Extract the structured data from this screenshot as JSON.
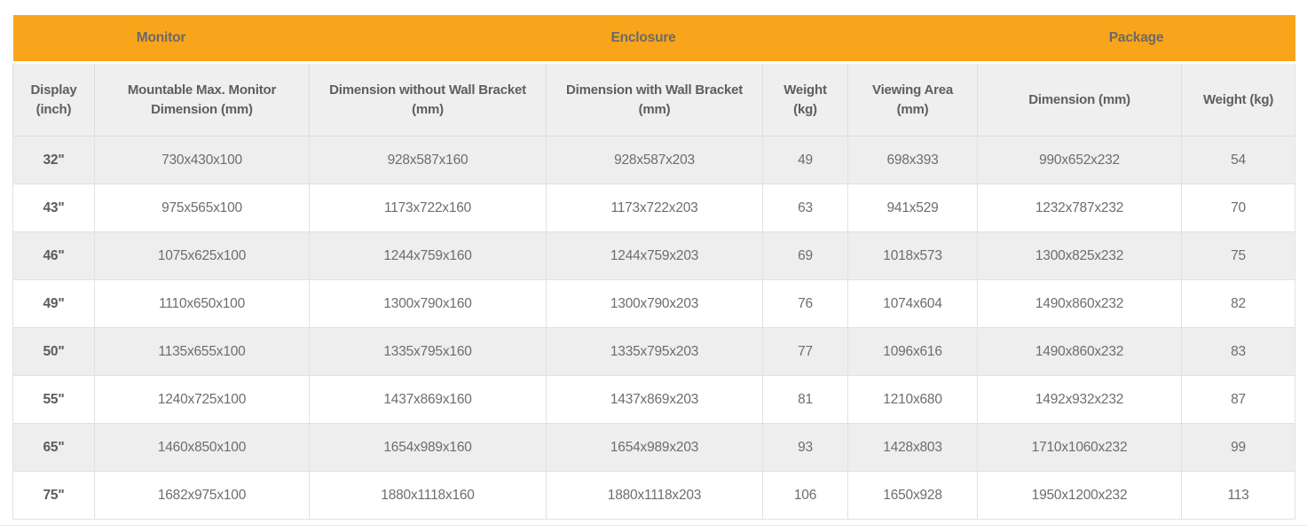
{
  "table": {
    "accent_color": "#F9A51B",
    "group_headers": [
      {
        "label": "Monitor",
        "colspan": "2"
      },
      {
        "label": "Enclosure",
        "colspan": "4"
      },
      {
        "label": "Package",
        "colspan": "2"
      }
    ],
    "columns": [
      {
        "label": "Display (inch)"
      },
      {
        "label": "Mountable Max. Monitor Dimension (mm)"
      },
      {
        "label": "Dimension without Wall Bracket (mm)"
      },
      {
        "label": "Dimension with Wall Bracket (mm)"
      },
      {
        "label": "Weight (kg)"
      },
      {
        "label": "Viewing Area (mm)"
      },
      {
        "label": "Dimension (mm)"
      },
      {
        "label": "Weight (kg)"
      }
    ],
    "rows": [
      {
        "display": "32\"",
        "cells": [
          "730x430x100",
          "928x587x160",
          "928x587x203",
          "49",
          "698x393",
          "990x652x232",
          "54"
        ]
      },
      {
        "display": "43\"",
        "cells": [
          "975x565x100",
          "1173x722x160",
          "1173x722x203",
          "63",
          "941x529",
          "1232x787x232",
          "70"
        ]
      },
      {
        "display": "46\"",
        "cells": [
          "1075x625x100",
          "1244x759x160",
          "1244x759x203",
          "69",
          "1018x573",
          "1300x825x232",
          "75"
        ]
      },
      {
        "display": "49\"",
        "cells": [
          "1110x650x100",
          "1300x790x160",
          "1300x790x203",
          "76",
          "1074x604",
          "1490x860x232",
          "82"
        ]
      },
      {
        "display": "50\"",
        "cells": [
          "1135x655x100",
          "1335x795x160",
          "1335x795x203",
          "77",
          "1096x616",
          "1490x860x232",
          "83"
        ]
      },
      {
        "display": "55\"",
        "cells": [
          "1240x725x100",
          "1437x869x160",
          "1437x869x203",
          "81",
          "1210x680",
          "1492x932x232",
          "87"
        ]
      },
      {
        "display": "65\"",
        "cells": [
          "1460x850x100",
          "1654x989x160",
          "1654x989x203",
          "93",
          "1428x803",
          "1710x1060x232",
          "99"
        ]
      },
      {
        "display": "75\"",
        "cells": [
          "1682x975x100",
          "1880x1118x160",
          "1880x1118x203",
          "106",
          "1650x928",
          "1950x1200x232",
          "113"
        ]
      }
    ],
    "cell_names": [
      "cell-display",
      "cell-mountable-max-monitor-dimension",
      "cell-dimension-without-wall-bracket",
      "cell-dimension-with-wall-bracket",
      "cell-enclosure-weight",
      "cell-viewing-area",
      "cell-package-dimension",
      "cell-package-weight"
    ]
  }
}
